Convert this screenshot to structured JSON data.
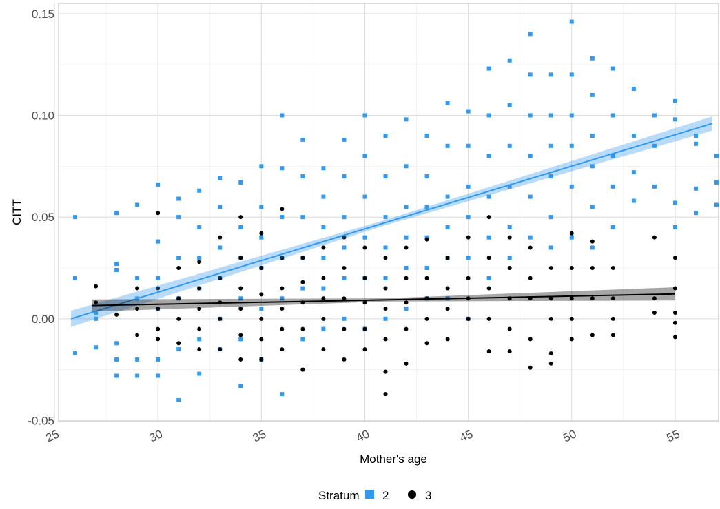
{
  "chart_data": {
    "type": "scatter",
    "xlabel": "Mother's age",
    "ylabel": "CITT",
    "xlim": [
      25.2,
      57.1
    ],
    "ylim": [
      -0.0505,
      0.155
    ],
    "xticks": [
      25,
      30,
      35,
      40,
      45,
      50,
      55
    ],
    "yticks": [
      {
        "value": -0.05,
        "label": "-0.05"
      },
      {
        "value": 0,
        "label": "0.00"
      },
      0.05,
      {
        "value": 0.1,
        "label": "0.10"
      },
      0.15
    ],
    "grid": true,
    "legend_title": "Stratum",
    "legend_position": "bottom",
    "series": [
      {
        "name": "2",
        "color": "#3399ee",
        "marker": "square",
        "x": [
          26,
          27,
          28,
          29,
          30,
          31,
          32,
          33,
          34,
          35,
          36,
          37,
          38,
          39,
          40,
          41,
          42,
          43,
          44,
          45,
          46,
          47,
          48,
          49,
          50,
          51,
          52,
          53,
          54,
          55,
          56,
          57
        ],
        "values": [
          [
            0.05,
            0.02,
            -0.017
          ],
          [
            -0.014,
            0.0,
            0.003
          ],
          [
            0.052,
            0.027,
            0.024,
            -0.012,
            -0.02,
            -0.028
          ],
          [
            0.056,
            0.02,
            0.01,
            -0.02,
            -0.028
          ],
          [
            0.066,
            0.038,
            0.02,
            0.005,
            -0.02,
            -0.028
          ],
          [
            0.059,
            0.05,
            0.03,
            0.01,
            -0.015,
            -0.04
          ],
          [
            0.063,
            0.045,
            0.03,
            0.015,
            -0.01,
            -0.027
          ],
          [
            0.069,
            0.055,
            0.035,
            0.02,
            0.0,
            -0.015
          ],
          [
            0.067,
            0.045,
            0.03,
            0.01,
            -0.01,
            -0.033
          ],
          [
            0.075,
            0.055,
            0.04,
            0.025,
            0.005,
            -0.02
          ],
          [
            0.1,
            0.074,
            0.05,
            0.03,
            0.01,
            -0.037
          ],
          [
            0.088,
            0.07,
            0.05,
            0.03,
            0.015,
            -0.01
          ],
          [
            0.074,
            0.06,
            0.045,
            0.03,
            0.015,
            -0.005
          ],
          [
            0.088,
            0.07,
            0.05,
            0.035,
            0.02,
            0.0
          ],
          [
            0.1,
            0.08,
            0.06,
            0.04,
            0.02,
            -0.005
          ],
          [
            0.09,
            0.07,
            0.05,
            0.035,
            0.02,
            0.0
          ],
          [
            0.098,
            0.075,
            0.055,
            0.04,
            0.025,
            0.005
          ],
          [
            0.09,
            0.07,
            0.055,
            0.04,
            0.025,
            0.01
          ],
          [
            0.106,
            0.085,
            0.06,
            0.045,
            0.03,
            0.01
          ],
          [
            0.102,
            0.085,
            0.065,
            0.05,
            0.03,
            0.0
          ],
          [
            0.123,
            0.1,
            0.08,
            0.06,
            0.04,
            0.02
          ],
          [
            0.127,
            0.105,
            0.085,
            0.065,
            0.045,
            0.03
          ],
          [
            0.14,
            0.12,
            0.1,
            0.08,
            0.06,
            0.04
          ],
          [
            0.12,
            0.1,
            0.085,
            0.07,
            0.05,
            0.035
          ],
          [
            0.146,
            0.12,
            0.1,
            0.085,
            0.065,
            0.04
          ],
          [
            0.128,
            0.11,
            0.09,
            0.075,
            0.055,
            0.035
          ],
          [
            0.123,
            0.1,
            0.08,
            0.065,
            0.045
          ],
          [
            0.113,
            0.09,
            0.072,
            0.058
          ],
          [
            0.1,
            0.085,
            0.065
          ],
          [
            0.107,
            0.098,
            0.057,
            0.045
          ],
          [
            0.09,
            0.086,
            0.064,
            0.052
          ],
          [
            0.08,
            0.067,
            0.056
          ]
        ],
        "trend": {
          "x": [
            25.8,
            41,
            56.8
          ],
          "y": [
            0.0,
            0.0473,
            0.096
          ],
          "lower": [
            -0.004,
            0.046,
            0.0925
          ],
          "upper": [
            0.004,
            0.0486,
            0.0995
          ]
        }
      },
      {
        "name": "3",
        "color": "#000000",
        "marker": "circle",
        "x": [
          27,
          28,
          29,
          30,
          31,
          32,
          33,
          34,
          35,
          36,
          37,
          38,
          39,
          40,
          41,
          42,
          43,
          44,
          45,
          46,
          47,
          48,
          49,
          50,
          51,
          52,
          54,
          55
        ],
        "values": [
          [
            0.016,
            0.008
          ],
          [
            0.002
          ],
          [
            0.015,
            0.005,
            -0.008
          ],
          [
            0.052,
            0.015,
            0.005,
            -0.005,
            -0.01
          ],
          [
            0.025,
            0.01,
            0.0,
            -0.012
          ],
          [
            0.028,
            0.015,
            0.005,
            -0.005,
            -0.015
          ],
          [
            0.04,
            0.02,
            0.008,
            0.0,
            -0.015
          ],
          [
            0.05,
            0.03,
            0.015,
            0.005,
            -0.008,
            -0.02
          ],
          [
            0.042,
            0.025,
            0.012,
            0.0,
            -0.01,
            -0.02
          ],
          [
            0.054,
            0.03,
            0.015,
            0.005,
            -0.005,
            -0.015
          ],
          [
            0.03,
            0.018,
            0.008,
            -0.005,
            -0.025
          ],
          [
            0.035,
            0.02,
            0.01,
            0.0,
            -0.015
          ],
          [
            0.04,
            0.025,
            0.01,
            -0.005,
            -0.02
          ],
          [
            0.035,
            0.02,
            0.008,
            -0.005,
            -0.015
          ],
          [
            0.03,
            0.015,
            0.005,
            -0.01,
            -0.026,
            -0.037
          ],
          [
            0.035,
            0.02,
            0.008,
            -0.005,
            -0.022
          ],
          [
            0.039,
            0.02,
            0.01,
            0.0,
            -0.012
          ],
          [
            0.03,
            0.015,
            0.005,
            -0.01
          ],
          [
            0.04,
            0.02,
            0.01,
            0.0
          ],
          [
            0.05,
            0.03,
            0.015,
            0.0,
            -0.016
          ],
          [
            0.04,
            0.025,
            0.01,
            -0.005,
            -0.016
          ],
          [
            0.035,
            0.02,
            0.01,
            -0.01,
            -0.024
          ],
          [
            0.025,
            0.01,
            0.0,
            -0.017,
            -0.022
          ],
          [
            0.042,
            0.025,
            0.01,
            0.0,
            -0.01
          ],
          [
            0.038,
            0.025,
            0.01,
            -0.008
          ],
          [
            0.025,
            0.01,
            0.0,
            -0.008
          ],
          [
            0.04,
            0.01,
            0.003
          ],
          [
            0.03,
            0.015,
            0.003,
            -0.002,
            -0.009
          ]
        ],
        "trend": {
          "x": [
            26.8,
            41,
            55
          ],
          "y": [
            0.0065,
            0.0093,
            0.0122
          ],
          "lower": [
            0.0035,
            0.0085,
            0.009
          ],
          "upper": [
            0.0095,
            0.0101,
            0.0155
          ]
        }
      }
    ]
  }
}
